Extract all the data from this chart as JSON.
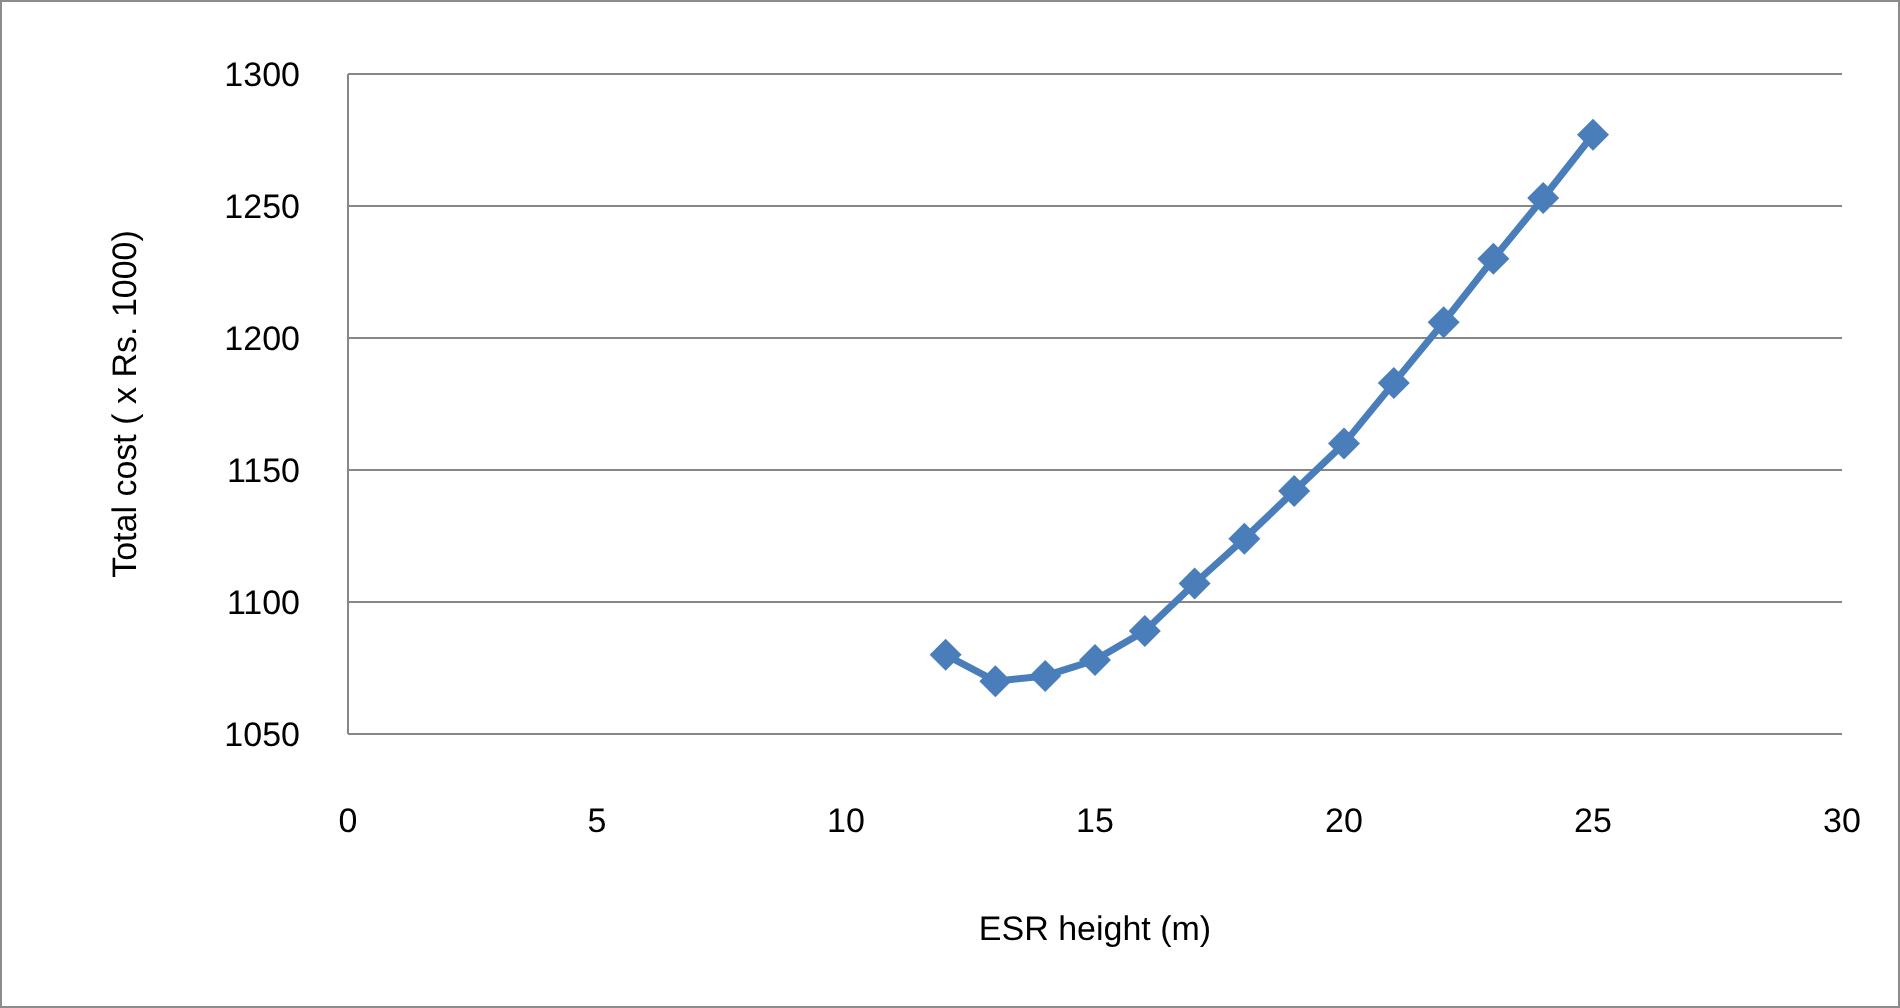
{
  "chart_data": {
    "type": "line",
    "xlabel": "ESR height (m)",
    "ylabel": "Total cost ( x Rs. 1000)",
    "x": [
      12,
      13,
      14,
      15,
      16,
      17,
      18,
      19,
      20,
      21,
      22,
      23,
      24,
      25
    ],
    "series": [
      {
        "color": "#4a7ebb",
        "values": [
          1080,
          1070,
          1072,
          1078,
          1089,
          1107,
          1124,
          1142,
          1160,
          1183,
          1206,
          1230,
          1253,
          1277
        ]
      }
    ],
    "xlim": [
      0,
      30
    ],
    "xticks": [
      0,
      5,
      10,
      15,
      20,
      25,
      30
    ],
    "ylim": [
      1050,
      1300
    ],
    "yticks": [
      1050,
      1100,
      1150,
      1200,
      1250,
      1300
    ],
    "grid": "y",
    "marker": "diamond",
    "line_style": "solid"
  }
}
